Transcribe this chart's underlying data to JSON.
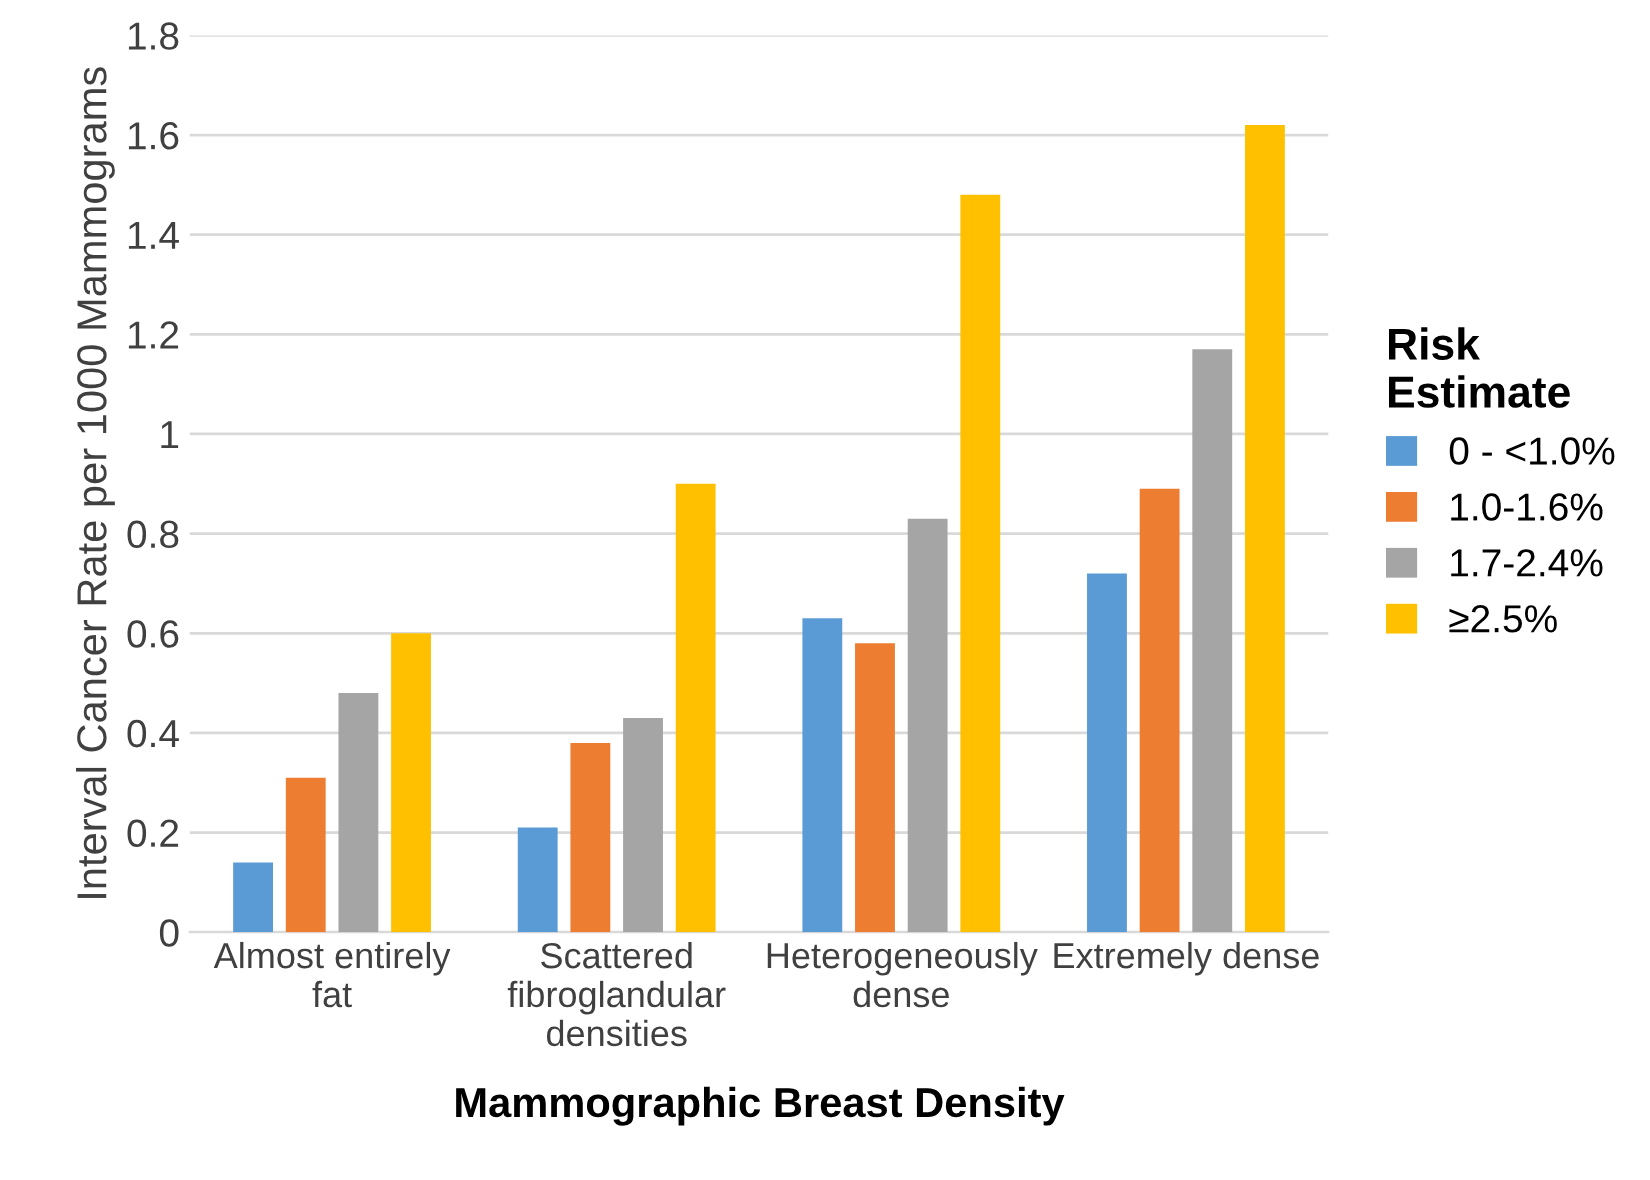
{
  "chart_data": {
    "type": "bar",
    "xlabel": "Mammographic Breast Density",
    "ylabel": "Interval Cancer Rate per 1000 Mammograms",
    "legend_title": "Risk\nEstimate",
    "categories": [
      "Almost entirely\nfat",
      "Scattered\nfibroglandular\ndensities",
      "Heterogeneously\ndense",
      "Extremely dense"
    ],
    "series": [
      {
        "name": "0 - <1.0%",
        "color": "#5b9bd5",
        "values": [
          0.14,
          0.21,
          0.63,
          0.72
        ]
      },
      {
        "name": "1.0-1.6%",
        "color": "#ed7d31",
        "values": [
          0.31,
          0.38,
          0.58,
          0.89
        ]
      },
      {
        "name": "1.7-2.4%",
        "color": "#a5a5a5",
        "values": [
          0.48,
          0.43,
          0.83,
          1.17
        ]
      },
      {
        "name": "≥2.5%",
        "color": "#ffc000",
        "values": [
          0.6,
          0.9,
          1.48,
          1.62
        ]
      }
    ],
    "ylim": [
      0,
      1.8
    ],
    "yticks": [
      0,
      0.2,
      0.4,
      0.6,
      0.8,
      1,
      1.2,
      1.4,
      1.6,
      1.8
    ],
    "grid": "y",
    "legend": "right"
  }
}
